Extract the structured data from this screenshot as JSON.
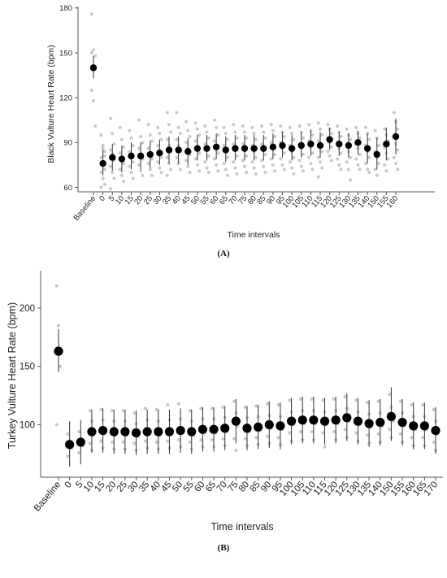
{
  "colors": {
    "mean": "#000000",
    "raw_points": "#c8c8c8",
    "error_bar": "#333333",
    "axis": "#555555"
  },
  "chart_data": [
    {
      "type": "scatter",
      "panel_label": "(A)",
      "xlabel": "Time intervals",
      "ylabel": "Black Vulture Heart Rate (bpm)",
      "ylim": [
        57,
        181
      ],
      "yticks": [
        60,
        90,
        120,
        150,
        180
      ],
      "grid": false,
      "legend": "none",
      "categories": [
        "Baseline",
        "0",
        "5",
        "10",
        "15",
        "20",
        "25",
        "30",
        "35",
        "40",
        "45",
        "50",
        "55",
        "60",
        "65",
        "70",
        "75",
        "80",
        "85",
        "90",
        "95",
        "100",
        "105",
        "110",
        "115",
        "120",
        "125",
        "130",
        "135",
        "140",
        "150",
        "155",
        "160"
      ],
      "series": [
        {
          "values": [
            140,
            76,
            80,
            79,
            81,
            81,
            82,
            83,
            85,
            85,
            84,
            86,
            86,
            87,
            85,
            86,
            86,
            86,
            86,
            87,
            88,
            86,
            88,
            89,
            88,
            92,
            89,
            88,
            90,
            86,
            82,
            89,
            94
          ],
          "error_low": [
            133,
            68,
            71,
            70,
            72,
            72,
            73,
            75,
            76,
            76,
            75,
            78,
            78,
            79,
            77,
            78,
            78,
            78,
            78,
            79,
            80,
            78,
            80,
            81,
            80,
            85,
            81,
            80,
            82,
            76,
            72,
            78,
            82
          ],
          "error_high": [
            148,
            85,
            89,
            88,
            90,
            90,
            91,
            92,
            94,
            94,
            93,
            95,
            95,
            96,
            94,
            95,
            95,
            95,
            95,
            96,
            97,
            95,
            97,
            98,
            97,
            100,
            97,
            96,
            98,
            96,
            93,
            100,
            106
          ]
        }
      ],
      "raw_points": [
        [
          176,
          152,
          148,
          125,
          118,
          101,
          150
        ],
        [
          95,
          88,
          84,
          80,
          76,
          72,
          70,
          66,
          62,
          60,
          86,
          81
        ],
        [
          106,
          96,
          89,
          85,
          82,
          78,
          74,
          70,
          66,
          59
        ],
        [
          100,
          92,
          87,
          83,
          80,
          76,
          72,
          68,
          64
        ],
        [
          98,
          93,
          88,
          84,
          80,
          77,
          74,
          70,
          66
        ],
        [
          105,
          94,
          90,
          86,
          82,
          79,
          75,
          71,
          68
        ],
        [
          102,
          95,
          91,
          86,
          83,
          79,
          76,
          72,
          68
        ],
        [
          100,
          96,
          92,
          88,
          84,
          80,
          77,
          73,
          70
        ],
        [
          110,
          102,
          97,
          92,
          88,
          84,
          80,
          76,
          72,
          68
        ],
        [
          110,
          100,
          96,
          92,
          88,
          84,
          80,
          76,
          72
        ],
        [
          104,
          98,
          94,
          90,
          86,
          82,
          78,
          74,
          70
        ],
        [
          103,
          99,
          95,
          91,
          87,
          83,
          79,
          75,
          71
        ],
        [
          101,
          97,
          93,
          89,
          85,
          81,
          77,
          73,
          70
        ],
        [
          105,
          100,
          95,
          91,
          87,
          83,
          79,
          75,
          71
        ],
        [
          100,
          96,
          92,
          88,
          84,
          80,
          76,
          72,
          68
        ],
        [
          102,
          97,
          93,
          89,
          85,
          81,
          77,
          73,
          69
        ],
        [
          101,
          97,
          93,
          89,
          85,
          81,
          78,
          74,
          70
        ],
        [
          100,
          96,
          92,
          88,
          84,
          80,
          77,
          73,
          69
        ],
        [
          101,
          97,
          93,
          89,
          85,
          82,
          78,
          74,
          70
        ],
        [
          102,
          98,
          94,
          90,
          86,
          82,
          79,
          75,
          71
        ],
        [
          101,
          97,
          94,
          90,
          86,
          83,
          79,
          75,
          72
        ],
        [
          100,
          96,
          92,
          88,
          84,
          80,
          77,
          73,
          69
        ],
        [
          101,
          97,
          93,
          89,
          86,
          82,
          78,
          74,
          71
        ],
        [
          102,
          98,
          95,
          91,
          87,
          83,
          80,
          76,
          72
        ],
        [
          103,
          99,
          95,
          91,
          88,
          84,
          80,
          77,
          73,
          67
        ],
        [
          102,
          99,
          96,
          93,
          90,
          87,
          84,
          81,
          78
        ],
        [
          101,
          97,
          94,
          90,
          86,
          83,
          79,
          75,
          72
        ],
        [
          99,
          95,
          92,
          88,
          84,
          80,
          77,
          72,
          65
        ],
        [
          100,
          96,
          93,
          89,
          86,
          82,
          79,
          75,
          72
        ],
        [
          100,
          96,
          92,
          88,
          84,
          80,
          76,
          72,
          70
        ],
        [
          98,
          93,
          88,
          84,
          80,
          76,
          72,
          68
        ],
        [
          99,
          95,
          91,
          87,
          83,
          79,
          75,
          71
        ],
        [
          110,
          104,
          99,
          94,
          89,
          85,
          80,
          76,
          72
        ]
      ]
    },
    {
      "type": "scatter",
      "panel_label": "(B)",
      "xlabel": "Time intervals",
      "ylabel": "Turkey Vulture Heart Rate (bpm)",
      "ylim": [
        55,
        232
      ],
      "yticks": [
        100,
        150,
        200
      ],
      "grid": false,
      "legend": "none",
      "categories": [
        "Baseline",
        "0",
        "5",
        "10",
        "15",
        "20",
        "25",
        "30",
        "35",
        "40",
        "45",
        "50",
        "55",
        "60",
        "65",
        "70",
        "75",
        "80",
        "85",
        "90",
        "95",
        "100",
        "105",
        "110",
        "115",
        "120",
        "125",
        "130",
        "135",
        "140",
        "150",
        "155",
        "160",
        "165",
        "170"
      ],
      "series": [
        {
          "values": [
            163,
            83,
            85,
            94,
            95,
            94,
            94,
            93,
            94,
            94,
            94,
            95,
            94,
            96,
            96,
            97,
            103,
            97,
            98,
            100,
            99,
            103,
            104,
            104,
            103,
            104,
            106,
            103,
            101,
            102,
            107,
            102,
            99,
            99,
            95
          ],
          "error_low": [
            145,
            64,
            66,
            76,
            76,
            75,
            75,
            74,
            75,
            75,
            75,
            76,
            75,
            77,
            77,
            78,
            84,
            78,
            79,
            80,
            79,
            83,
            84,
            84,
            83,
            84,
            86,
            83,
            81,
            82,
            86,
            82,
            79,
            79,
            75
          ],
          "error_high": [
            182,
            103,
            104,
            113,
            114,
            113,
            113,
            112,
            113,
            113,
            113,
            114,
            113,
            115,
            115,
            116,
            122,
            116,
            117,
            120,
            119,
            123,
            124,
            124,
            123,
            124,
            127,
            123,
            121,
            122,
            132,
            122,
            119,
            119,
            115
          ]
        }
      ],
      "raw_points": [
        [
          219,
          185,
          150,
          100
        ],
        [
          92,
          86,
          80,
          73
        ],
        [
          94,
          88,
          82,
          76
        ],
        [
          112,
          103,
          91,
          84,
          78
        ],
        [
          113,
          104,
          92,
          86,
          80
        ],
        [
          112,
          103,
          91,
          85,
          79
        ],
        [
          112,
          103,
          91,
          85,
          79
        ],
        [
          110,
          101,
          90,
          84,
          78
        ],
        [
          114,
          104,
          92,
          86,
          80
        ],
        [
          113,
          103,
          91,
          85,
          79
        ],
        [
          117,
          104,
          92,
          86,
          80
        ],
        [
          118,
          105,
          93,
          87,
          81
        ],
        [
          112,
          103,
          91,
          85,
          79
        ],
        [
          114,
          105,
          93,
          87,
          81
        ],
        [
          114,
          105,
          93,
          87,
          81
        ],
        [
          115,
          106,
          94,
          88,
          82
        ],
        [
          120,
          110,
          99,
          88,
          78
        ],
        [
          115,
          106,
          94,
          88,
          82
        ],
        [
          116,
          107,
          95,
          89,
          83
        ],
        [
          118,
          108,
          97,
          90,
          84
        ],
        [
          117,
          107,
          96,
          89,
          83
        ],
        [
          121,
          111,
          100,
          93,
          86
        ],
        [
          122,
          112,
          101,
          94,
          87
        ],
        [
          122,
          112,
          101,
          94,
          87
        ],
        [
          121,
          111,
          100,
          93,
          81
        ],
        [
          122,
          112,
          101,
          94,
          87
        ],
        [
          124,
          114,
          103,
          96,
          89
        ],
        [
          121,
          111,
          100,
          93,
          86
        ],
        [
          119,
          109,
          98,
          91,
          84
        ],
        [
          120,
          110,
          99,
          92,
          85
        ],
        [
          126,
          115,
          103,
          96,
          89
        ],
        [
          120,
          110,
          99,
          92,
          85
        ],
        [
          117,
          107,
          96,
          89,
          82
        ],
        [
          117,
          107,
          96,
          89,
          82
        ],
        [
          113,
          103,
          92,
          85,
          78
        ]
      ]
    }
  ]
}
